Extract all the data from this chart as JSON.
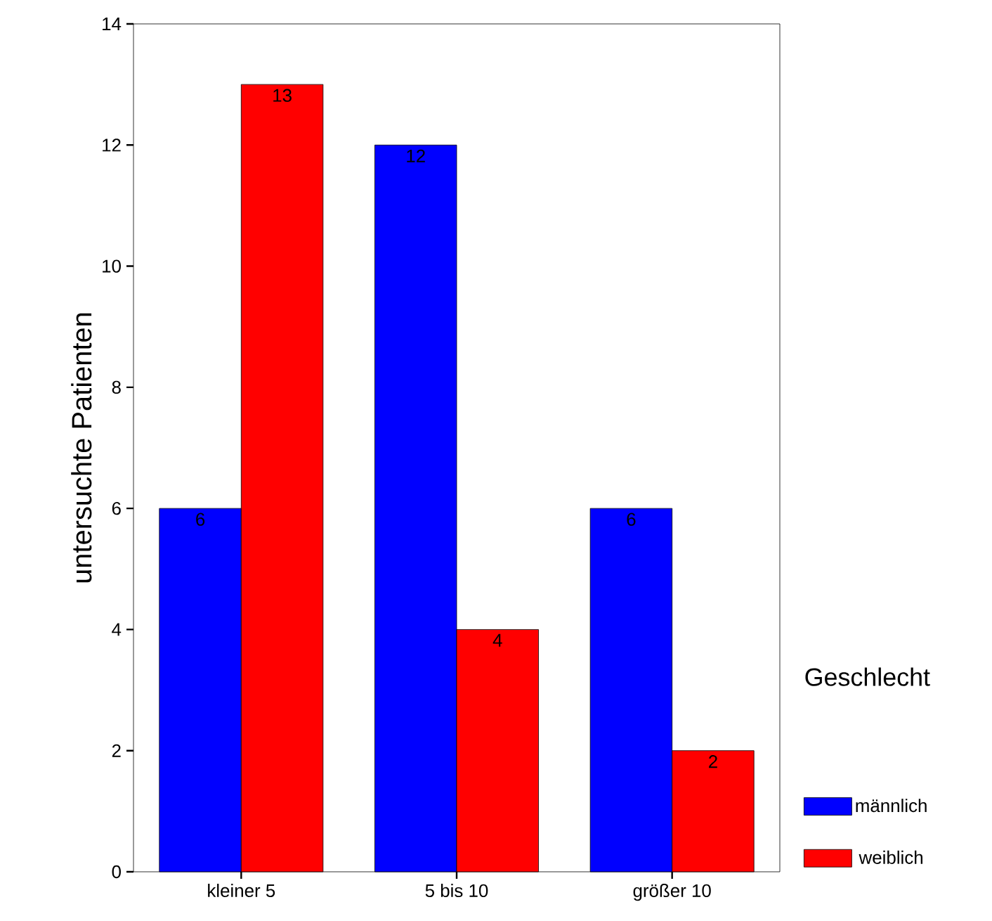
{
  "chart_data": {
    "type": "bar",
    "ylabel": "untersuchte Patienten",
    "legend_title": "Geschlecht",
    "categories": [
      "kleiner 5",
      "5 bis 10",
      "größer 10"
    ],
    "series": [
      {
        "name": "männlich",
        "color": "#0000ff",
        "values": [
          6,
          12,
          6
        ]
      },
      {
        "name": "weiblich",
        "color": "#ff0000",
        "values": [
          13,
          4,
          2
        ]
      }
    ],
    "ylim": [
      0,
      14
    ],
    "yticks": [
      0,
      2,
      4,
      6,
      8,
      10,
      12,
      14
    ],
    "data_labels": true,
    "legend": "bottom right",
    "grid": false
  }
}
